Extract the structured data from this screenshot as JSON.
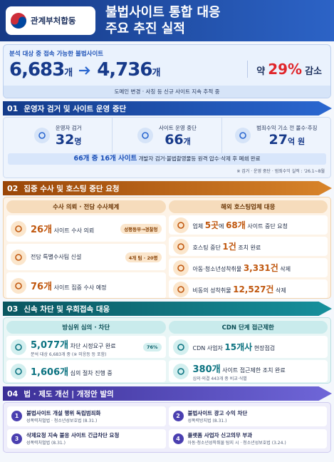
{
  "header": {
    "logo_text": "관계부처합동",
    "title_line1": "불법사이트 통합 대응",
    "title_line2": "주요 추진 실적"
  },
  "summary": {
    "label": "분석 대상 중 접속 가능한 불법사이트",
    "before": {
      "number": "6,683",
      "unit": "개"
    },
    "after": {
      "number": "4,736",
      "unit": "개"
    },
    "reduction": {
      "prefix": "약",
      "number": "29%",
      "suffix": "감소"
    },
    "note": "도메인 변경 · 사칭 등 신규 사이트 지속 추적 중"
  },
  "section1": {
    "number": "01",
    "title": "운영자 검거 및 사이트 운영 중단",
    "stats": [
      {
        "label": "운영자 검거",
        "number": "32",
        "unit": "명"
      },
      {
        "label": "사이트 운영 중단",
        "number": "66",
        "unit": "개"
      },
      {
        "label": "범죄수익 기소 전 몰수·추징",
        "number": "27",
        "unit": "억 원"
      }
    ],
    "banner": {
      "highlight": "66개 중 16개 사이트",
      "text": "개발자 검거·불법촬영물등 원격 압수·삭제 후 폐쇄 완료"
    },
    "footnote": "※ 검거 · 운영 중단 · 범죄수익 실적 : '26.1~8월"
  },
  "section2": {
    "number": "02",
    "title": "집중 수사 및 호스팅 중단 요청",
    "left": {
      "heading": "수사 의뢰 · 전담 수사체계",
      "items": [
        {
          "highlight": "26개",
          "text": "사이트 수사 의뢰",
          "tag": "성평등부→경찰청"
        },
        {
          "text": "전담 특별수사팀 신설",
          "tag": "4개 팀 · 20명"
        },
        {
          "highlight": "76개",
          "text": "사이트 집중 수사 예정"
        }
      ]
    },
    "right": {
      "heading": "해외 호스팅업체 대응",
      "items": [
        {
          "parts": [
            "업체 ",
            "5곳",
            "에 ",
            "68개",
            " 사이트 중단 요청"
          ]
        },
        {
          "parts": [
            "호스팅 중단 ",
            "1건",
            " 조치 완료"
          ]
        },
        {
          "parts": [
            "아동·청소년성착취물 ",
            "3,331건",
            " 삭제"
          ]
        },
        {
          "parts": [
            "비동의 성착취물 ",
            "12,527건",
            " 삭제"
          ]
        }
      ]
    }
  },
  "section3": {
    "number": "03",
    "title": "신속 차단 및 우회접속 대응",
    "left": {
      "heading": "방심위 심의 · 차단",
      "items": [
        {
          "highlight": "5,077개",
          "text": "차단 시정요구 완료",
          "tag": "76%",
          "sub": "분석 대상 6,683개 중 (※ 미응등 등 포함)"
        },
        {
          "highlight": "1,606개",
          "text": "심의 절차 진행 중"
        }
      ]
    },
    "right": {
      "heading": "CDN 단계 접근제한",
      "items": [
        {
          "parts": [
            "CDN 사업자 ",
            "15개사",
            " 현장점검"
          ]
        },
        {
          "highlight": "380개",
          "text": "사이트 접근제한 조치 완료",
          "sub": "심의·의결 443개 중 비교·식별"
        }
      ]
    }
  },
  "section4": {
    "number": "04",
    "title": "법 · 제도 개선 | 개정안 발의",
    "items": [
      {
        "badge": "1",
        "title": "불법사이트 개설 행위 독립범죄화",
        "law": "성폭력처벌법 · 청소년성보호법 (8.31.)"
      },
      {
        "badge": "2",
        "title": "불법사이트 광고 수익 차단",
        "law": "성폭력방지법 (8.31.)"
      },
      {
        "badge": "3",
        "title": "삭제요청 지속 불응 사이트 긴급차단 요청",
        "law": "성폭력처벌법 (8.31.)"
      },
      {
        "badge": "4",
        "title": "플랫폼 사업자 신고의무 부과",
        "law": "아동·청소년성착취물 탐지 시 · 청소년성보호법 (3.24.)"
      }
    ]
  }
}
